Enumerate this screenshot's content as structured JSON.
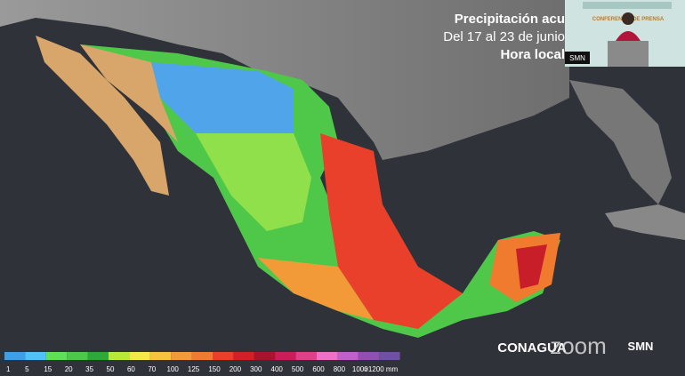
{
  "header": {
    "title": "Precipitación acu",
    "subtitle": "Del 17 al 23 de junio",
    "note": "Hora local"
  },
  "video": {
    "banner": "CONFERENCIA DE PRENSA",
    "label": "SMN"
  },
  "legend": {
    "labels": [
      "1",
      "5",
      "15",
      "20",
      "35",
      "50",
      "60",
      "70",
      "100",
      "125",
      "150",
      "200",
      "300",
      "400",
      "500",
      "600",
      "800",
      "1000",
      ">1200 mm"
    ],
    "colors": [
      "#3d9fe6",
      "#4fc3f7",
      "#5fe05a",
      "#4cc84a",
      "#2fa83a",
      "#b8e83a",
      "#f2e84a",
      "#f5c242",
      "#f29a38",
      "#f07b2e",
      "#e8402a",
      "#d0202a",
      "#a8142c",
      "#c81e5a",
      "#e0408a",
      "#f070c8",
      "#c060c8",
      "#9050b0",
      "#7050a0"
    ]
  },
  "logos": {
    "conagua": "CONAGUA",
    "smn": "SMN",
    "zoom": "zoom"
  }
}
